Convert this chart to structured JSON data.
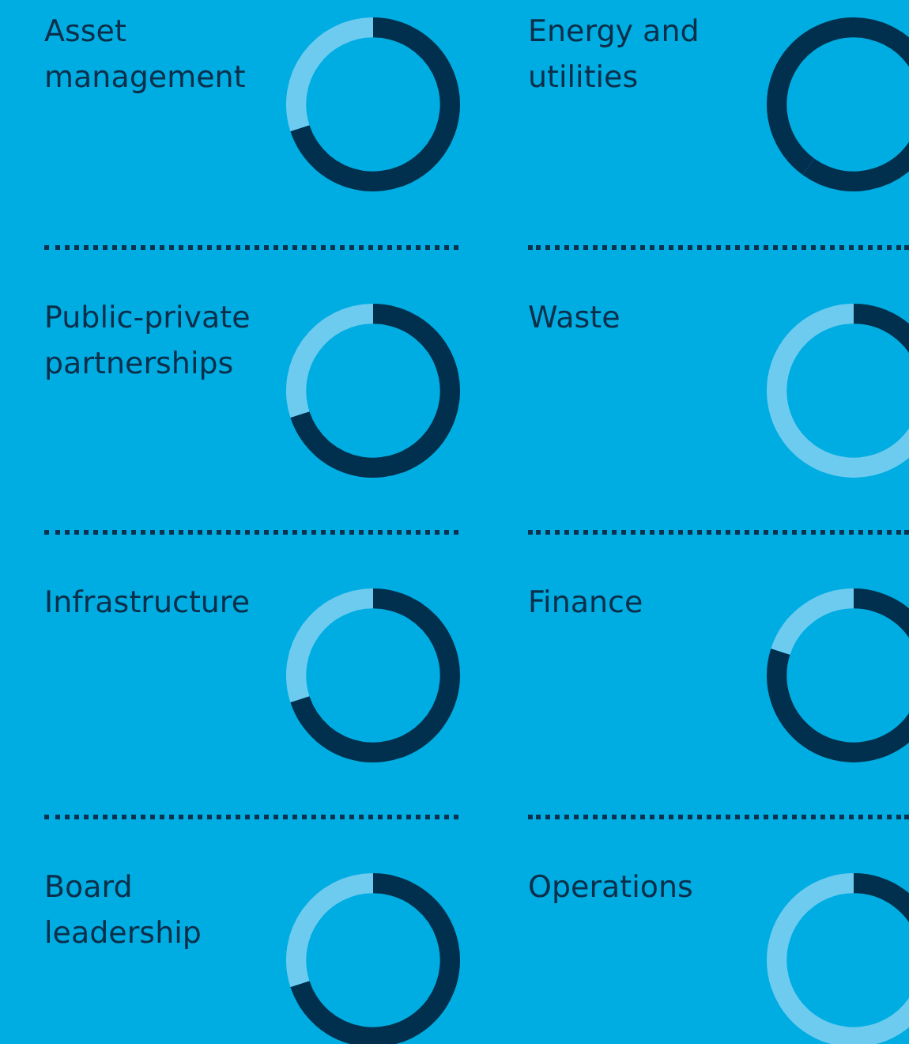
{
  "chart_data": [
    {
      "type": "donut",
      "title": "Asset management",
      "categories": [
        null,
        null
      ],
      "values": [
        70,
        30
      ],
      "colors": [
        "#00304d",
        "#6ecbf0"
      ]
    },
    {
      "type": "donut",
      "title": "Energy and utilities",
      "categories": [
        null,
        null
      ],
      "values": [
        60,
        40
      ],
      "colors": [
        "#00304d",
        "#00304d"
      ]
    },
    {
      "type": "donut",
      "title": "Public-private partnerships",
      "categories": [
        null,
        null
      ],
      "values": [
        70,
        30
      ],
      "colors": [
        "#00304d",
        "#6ecbf0"
      ]
    },
    {
      "type": "donut",
      "title": "Waste",
      "categories": [
        null,
        null
      ],
      "values": [
        20,
        80
      ],
      "colors": [
        "#00304d",
        "#6ecbf0"
      ]
    },
    {
      "type": "donut",
      "title": "Infrastructure",
      "categories": [
        null,
        null
      ],
      "values": [
        70,
        30
      ],
      "colors": [
        "#00304d",
        "#6ecbf0"
      ]
    },
    {
      "type": "donut",
      "title": "Finance",
      "categories": [
        null,
        null
      ],
      "values": [
        80,
        20
      ],
      "colors": [
        "#00304d",
        "#6ecbf0"
      ]
    },
    {
      "type": "donut",
      "title": "Board leadership",
      "categories": [
        null,
        null
      ],
      "values": [
        70,
        30
      ],
      "colors": [
        "#00304d",
        "#6ecbf0"
      ]
    },
    {
      "type": "donut",
      "title": "Operations",
      "categories": [
        null,
        null
      ],
      "values": [
        20,
        80
      ],
      "colors": [
        "#00304d",
        "#6ecbf0"
      ]
    }
  ]
}
